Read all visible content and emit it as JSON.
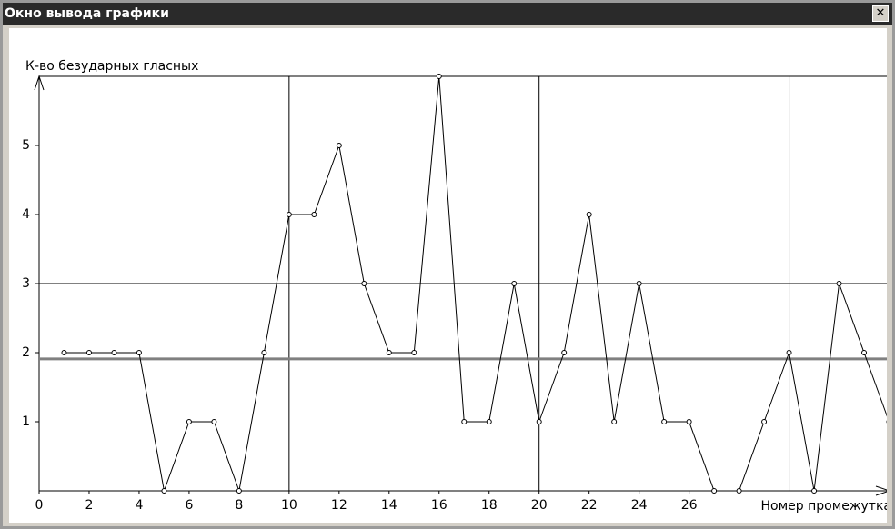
{
  "window_title": "Окно вывода графики",
  "chart_data": {
    "type": "line",
    "ylabel": "К-во безударных гласных",
    "xlabel": "Номер промежутка",
    "x": [
      1,
      2,
      3,
      4,
      5,
      6,
      7,
      8,
      9,
      10,
      11,
      12,
      13,
      14,
      15,
      16,
      17,
      18,
      19,
      20,
      21,
      22,
      23,
      24,
      25,
      26,
      27,
      28,
      29,
      30,
      31,
      32,
      33,
      34
    ],
    "series": [
      {
        "color": "#000000",
        "values": [
          2,
          2,
          2,
          2,
          0,
          1,
          1,
          0,
          2,
          4,
          4,
          5,
          3,
          2,
          2,
          6,
          1,
          1,
          3,
          1,
          2,
          4,
          1,
          3,
          1,
          1,
          0,
          0,
          1,
          2,
          0,
          3,
          2,
          1
        ]
      }
    ],
    "mean_line": 1.91,
    "mean_color": "#808080",
    "xlim": [
      0,
      34.2
    ],
    "ylim": [
      0,
      6
    ],
    "xticks": [
      0,
      2,
      4,
      6,
      8,
      10,
      12,
      14,
      16,
      18,
      20,
      22,
      24,
      26
    ],
    "yticks": [
      1,
      2,
      3,
      4,
      5
    ],
    "xgrid": [
      10,
      20,
      30
    ],
    "ygrid": [
      3,
      6
    ]
  }
}
